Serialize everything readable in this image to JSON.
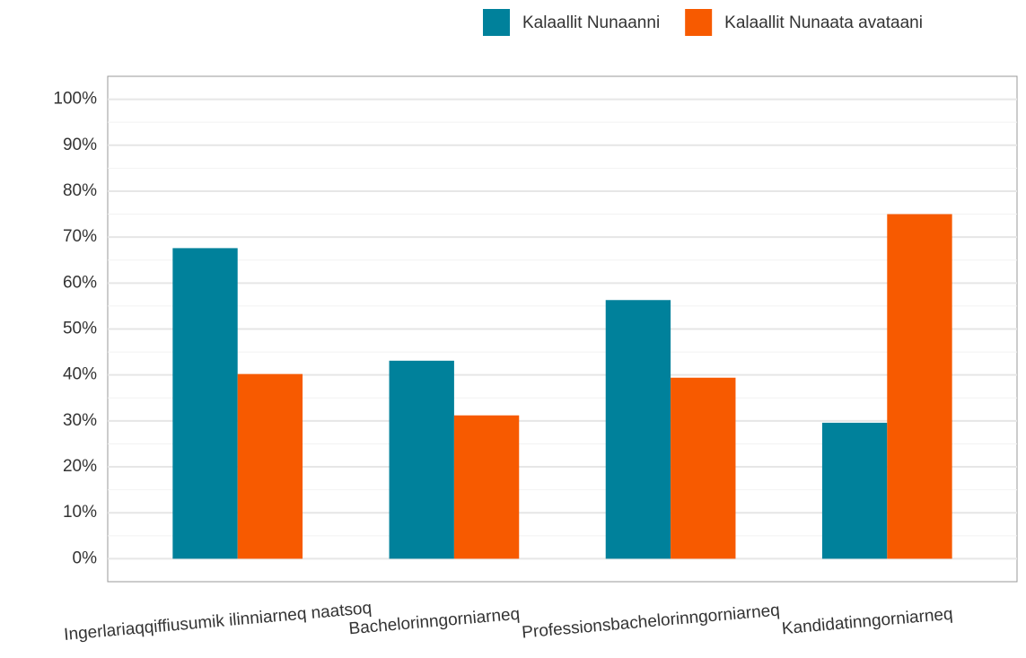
{
  "chart_data": {
    "type": "bar",
    "categories": [
      "Ingerlariaqqiffiusumik ilinniarneq naatsoq",
      "Bachelorinngorniarneq",
      "Professionsbachelorinngorniarneq",
      "Kandidatinngorniarneq"
    ],
    "series": [
      {
        "name": "Kalaallit Nunaanni",
        "color": "#00819b",
        "values": [
          67.6,
          43.1,
          56.3,
          29.6
        ]
      },
      {
        "name": "Kalaallit Nunaata avataani",
        "color": "#f75a00",
        "values": [
          40.2,
          31.2,
          39.4,
          75.0
        ]
      }
    ],
    "ylim": [
      -5,
      105
    ],
    "yticks": [
      {
        "value": 0,
        "label": "0%"
      },
      {
        "value": 10,
        "label": "10%"
      },
      {
        "value": 20,
        "label": "20%"
      },
      {
        "value": 30,
        "label": "30%"
      },
      {
        "value": 40,
        "label": "40%"
      },
      {
        "value": 50,
        "label": "50%"
      },
      {
        "value": 60,
        "label": "60%"
      },
      {
        "value": 70,
        "label": "70%"
      },
      {
        "value": 80,
        "label": "80%"
      },
      {
        "value": 90,
        "label": "90%"
      },
      {
        "value": 100,
        "label": "100%"
      }
    ],
    "grid": true,
    "legend": "top-right"
  }
}
